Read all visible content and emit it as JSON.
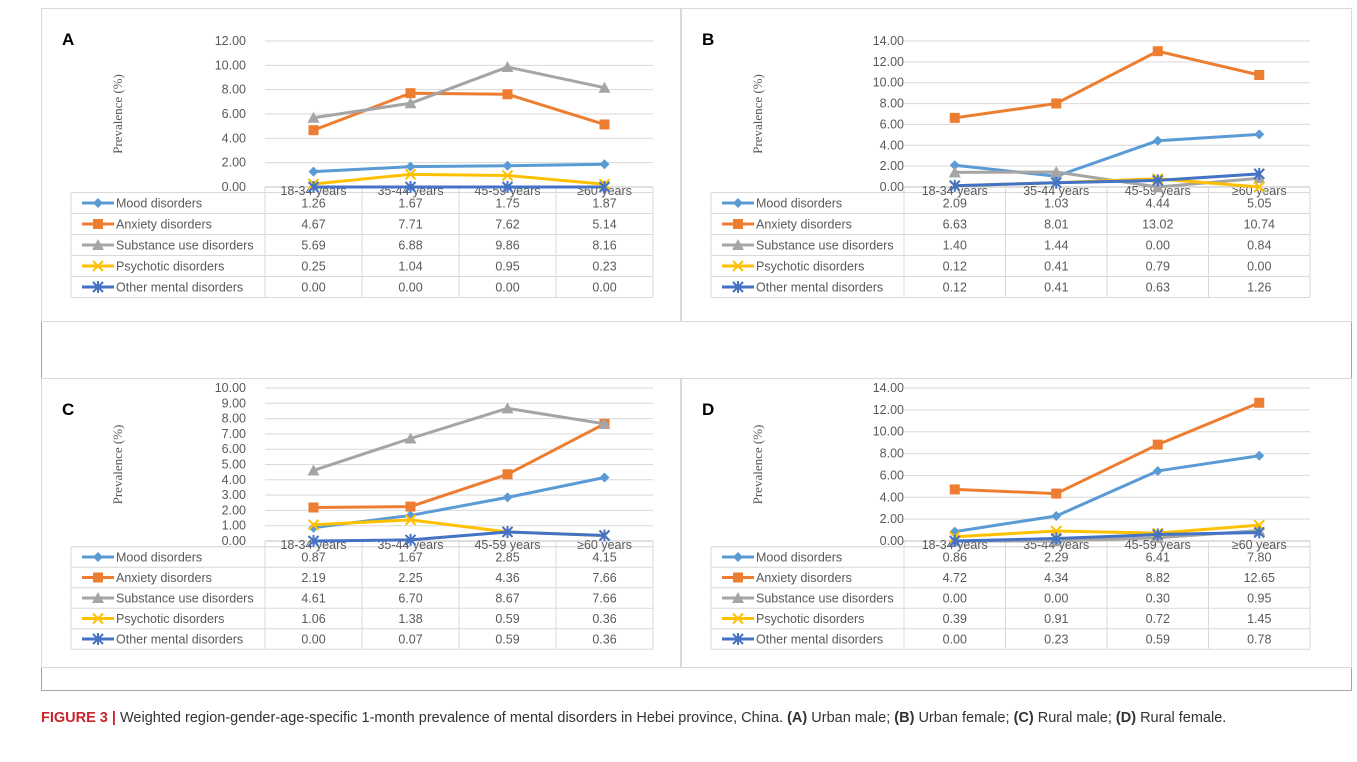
{
  "caption": {
    "label": "FIGURE 3 |",
    "text_1": " Weighted region-gender-age-specific 1-month prevalence of mental disorders in Hebei province, China. ",
    "a_tag": "(A)",
    "a_text": " Urban male; ",
    "b_tag": "(B)",
    "b_text": " Urban female; ",
    "c_tag": "(C)",
    "c_text": " Rural male; ",
    "d_tag": "(D)",
    "d_text": " Rural female."
  },
  "chart_data": [
    {
      "type": "line",
      "panel_letter": "A",
      "ylabel": "Prevalence (%)",
      "ylim": [
        0,
        12
      ],
      "yticks": [
        "0.00",
        "2.00",
        "4.00",
        "6.00",
        "8.00",
        "10.00",
        "12.00"
      ],
      "categories": [
        "18-34 years",
        "35-44  years",
        "45-59 years",
        "≥60 years"
      ],
      "series": [
        {
          "name": "Mood disorders",
          "values": [
            1.26,
            1.67,
            1.75,
            1.87
          ],
          "display": [
            "1.26",
            "1.67",
            "1.75",
            "1.87"
          ],
          "color": "#5b9bd5",
          "marker": "diamond"
        },
        {
          "name": "Anxiety disorders",
          "values": [
            4.67,
            7.71,
            7.62,
            5.14
          ],
          "display": [
            "4.67",
            "7.71",
            "7.62",
            "5.14"
          ],
          "color": "#ed7d31",
          "marker": "square"
        },
        {
          "name": "Substance use disorders",
          "values": [
            5.69,
            6.88,
            9.86,
            8.16
          ],
          "display": [
            "5.69",
            "6.88",
            "9.86",
            "8.16"
          ],
          "color": "#a5a5a5",
          "marker": "triangle"
        },
        {
          "name": "Psychotic disorders",
          "values": [
            0.25,
            1.04,
            0.95,
            0.23
          ],
          "display": [
            "0.25",
            "1.04",
            "0.95",
            "0.23"
          ],
          "color": "#ffc000",
          "marker": "x"
        },
        {
          "name": "Other mental disorders",
          "values": [
            0.0,
            0.0,
            0.0,
            0.0
          ],
          "display": [
            "0.00",
            "0.00",
            "0.00",
            "0.00"
          ],
          "color": "#4472c4",
          "marker": "star"
        }
      ]
    },
    {
      "type": "line",
      "panel_letter": "B",
      "ylabel": "Prevalence (%)",
      "ylim": [
        0,
        14
      ],
      "yticks": [
        "0.00",
        "2.00",
        "4.00",
        "6.00",
        "8.00",
        "10.00",
        "12.00",
        "14.00"
      ],
      "categories": [
        "18-34 years",
        "35-44  years",
        "45-59 years",
        "≥60 years"
      ],
      "series": [
        {
          "name": "Mood disorders",
          "values": [
            2.09,
            1.03,
            4.44,
            5.05
          ],
          "display": [
            "2.09",
            "1.03",
            "4.44",
            "5.05"
          ],
          "color": "#5b9bd5",
          "marker": "diamond"
        },
        {
          "name": "Anxiety disorders",
          "values": [
            6.63,
            8.01,
            13.02,
            10.74
          ],
          "display": [
            "6.63",
            "8.01",
            "13.02",
            "10.74"
          ],
          "color": "#ed7d31",
          "marker": "square"
        },
        {
          "name": "Substance use disorders",
          "values": [
            1.4,
            1.44,
            0.0,
            0.84
          ],
          "display": [
            "1.40",
            "1.44",
            "0.00",
            "0.84"
          ],
          "color": "#a5a5a5",
          "marker": "triangle"
        },
        {
          "name": "Psychotic disorders",
          "values": [
            0.12,
            0.41,
            0.79,
            0.0
          ],
          "display": [
            "0.12",
            "0.41",
            "0.79",
            "0.00"
          ],
          "color": "#ffc000",
          "marker": "x"
        },
        {
          "name": "Other mental disorders",
          "values": [
            0.12,
            0.41,
            0.63,
            1.26
          ],
          "display": [
            "0.12",
            "0.41",
            "0.63",
            "1.26"
          ],
          "color": "#4472c4",
          "marker": "star"
        }
      ]
    },
    {
      "type": "line",
      "panel_letter": "C",
      "ylabel": "Prevalence (%)",
      "ylim": [
        0,
        10
      ],
      "yticks": [
        "0.00",
        "1.00",
        "2.00",
        "3.00",
        "4.00",
        "5.00",
        "6.00",
        "7.00",
        "8.00",
        "9.00",
        "10.00"
      ],
      "categories": [
        "18-34 years",
        "35-44  years",
        "45-59 years",
        "≥60 years"
      ],
      "series": [
        {
          "name": "Mood disorders",
          "values": [
            0.87,
            1.67,
            2.85,
            4.15
          ],
          "display": [
            "0.87",
            "1.67",
            "2.85",
            "4.15"
          ],
          "color": "#5b9bd5",
          "marker": "diamond"
        },
        {
          "name": "Anxiety disorders",
          "values": [
            2.19,
            2.25,
            4.36,
            7.66
          ],
          "display": [
            "2.19",
            "2.25",
            "4.36",
            "7.66"
          ],
          "color": "#ed7d31",
          "marker": "square"
        },
        {
          "name": "Substance use disorders",
          "values": [
            4.61,
            6.7,
            8.67,
            7.66
          ],
          "display": [
            "4.61",
            "6.70",
            "8.67",
            "7.66"
          ],
          "color": "#a5a5a5",
          "marker": "triangle"
        },
        {
          "name": "Psychotic disorders",
          "values": [
            1.06,
            1.38,
            0.59,
            0.36
          ],
          "display": [
            "1.06",
            "1.38",
            "0.59",
            "0.36"
          ],
          "color": "#ffc000",
          "marker": "x"
        },
        {
          "name": "Other mental disorders",
          "values": [
            0.0,
            0.07,
            0.59,
            0.36
          ],
          "display": [
            "0.00",
            "0.07",
            "0.59",
            "0.36"
          ],
          "color": "#4472c4",
          "marker": "star"
        }
      ]
    },
    {
      "type": "line",
      "panel_letter": "D",
      "ylabel": "Prevalence (%)",
      "ylim": [
        0,
        14
      ],
      "yticks": [
        "0.00",
        "2.00",
        "4.00",
        "6.00",
        "8.00",
        "10.00",
        "12.00",
        "14.00"
      ],
      "categories": [
        "18-34 years",
        "35-44  years",
        "45-59 years",
        "≥60 years"
      ],
      "series": [
        {
          "name": "Mood disorders",
          "values": [
            0.86,
            2.29,
            6.41,
            7.8
          ],
          "display": [
            "0.86",
            "2.29",
            "6.41",
            "7.80"
          ],
          "color": "#5b9bd5",
          "marker": "diamond"
        },
        {
          "name": "Anxiety disorders",
          "values": [
            4.72,
            4.34,
            8.82,
            12.65
          ],
          "display": [
            "4.72",
            "4.34",
            "8.82",
            "12.65"
          ],
          "color": "#ed7d31",
          "marker": "square"
        },
        {
          "name": "Substance use disorders",
          "values": [
            0.0,
            0.0,
            0.3,
            0.95
          ],
          "display": [
            "0.00",
            "0.00",
            "0.30",
            "0.95"
          ],
          "color": "#a5a5a5",
          "marker": "triangle"
        },
        {
          "name": "Psychotic disorders",
          "values": [
            0.39,
            0.91,
            0.72,
            1.45
          ],
          "display": [
            "0.39",
            "0.91",
            "0.72",
            "1.45"
          ],
          "color": "#ffc000",
          "marker": "x"
        },
        {
          "name": "Other mental disorders",
          "values": [
            0.0,
            0.23,
            0.59,
            0.78
          ],
          "display": [
            "0.00",
            "0.23",
            "0.59",
            "0.78"
          ],
          "color": "#4472c4",
          "marker": "star"
        }
      ]
    }
  ]
}
